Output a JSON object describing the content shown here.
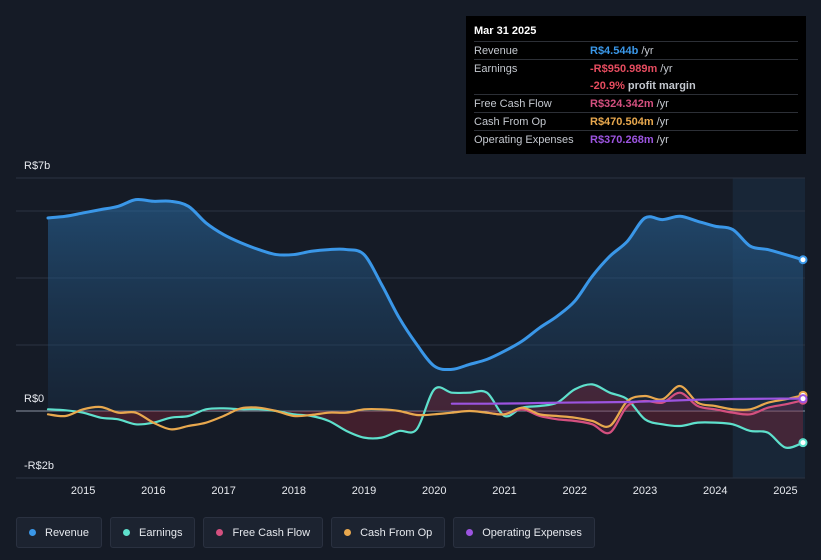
{
  "tooltip": {
    "date": "Mar 31 2025",
    "rows": [
      {
        "label": "Revenue",
        "value": "R$4.544b",
        "unit": "/yr",
        "color": "#3a97e8"
      },
      {
        "label": "Earnings",
        "value": "-R$950.989m",
        "unit": "/yr",
        "color": "#e64c5f"
      },
      {
        "label": "",
        "value": "-20.9%",
        "unit": "profit margin",
        "color": "#e64c5f"
      },
      {
        "label": "Free Cash Flow",
        "value": "R$324.342m",
        "unit": "/yr",
        "color": "#d4507f"
      },
      {
        "label": "Cash From Op",
        "value": "R$470.504m",
        "unit": "/yr",
        "color": "#e8a84e"
      },
      {
        "label": "Operating Expenses",
        "value": "R$370.268m",
        "unit": "/yr",
        "color": "#9c54e0"
      }
    ]
  },
  "legend": [
    {
      "label": "Revenue",
      "color": "#3a97e8"
    },
    {
      "label": "Earnings",
      "color": "#5ee0cc"
    },
    {
      "label": "Free Cash Flow",
      "color": "#d4507f"
    },
    {
      "label": "Cash From Op",
      "color": "#e8a84e"
    },
    {
      "label": "Operating Expenses",
      "color": "#9c54e0"
    }
  ],
  "chart_data": {
    "type": "line",
    "title": "",
    "xlabel": "",
    "ylabel": "",
    "y_unit": "R$ billions",
    "ylim": [
      -2,
      7
    ],
    "y_tick_labels": [
      {
        "value": 7,
        "label": "R$7b"
      },
      {
        "value": 0,
        "label": "R$0"
      },
      {
        "value": -2,
        "label": "-R$2b"
      }
    ],
    "x_ticks": [
      2015,
      2016,
      2017,
      2018,
      2019,
      2020,
      2021,
      2022,
      2023,
      2024,
      2025
    ],
    "xlim": [
      2014.5,
      2025.25
    ],
    "highlight_from": 2024.25,
    "series": [
      {
        "name": "Revenue",
        "color": "#3a97e8",
        "filled": true,
        "points": [
          [
            2014.5,
            5.8
          ],
          [
            2014.75,
            5.85
          ],
          [
            2015.0,
            5.95
          ],
          [
            2015.25,
            6.05
          ],
          [
            2015.5,
            6.15
          ],
          [
            2015.75,
            6.35
          ],
          [
            2016.0,
            6.3
          ],
          [
            2016.25,
            6.3
          ],
          [
            2016.5,
            6.15
          ],
          [
            2016.75,
            5.65
          ],
          [
            2017.0,
            5.3
          ],
          [
            2017.25,
            5.05
          ],
          [
            2017.5,
            4.85
          ],
          [
            2017.75,
            4.7
          ],
          [
            2018.0,
            4.7
          ],
          [
            2018.25,
            4.8
          ],
          [
            2018.5,
            4.85
          ],
          [
            2018.75,
            4.85
          ],
          [
            2019.0,
            4.7
          ],
          [
            2019.25,
            3.8
          ],
          [
            2019.5,
            2.8
          ],
          [
            2019.75,
            2.0
          ],
          [
            2020.0,
            1.35
          ],
          [
            2020.25,
            1.25
          ],
          [
            2020.5,
            1.4
          ],
          [
            2020.75,
            1.55
          ],
          [
            2021.0,
            1.8
          ],
          [
            2021.25,
            2.1
          ],
          [
            2021.5,
            2.5
          ],
          [
            2021.75,
            2.85
          ],
          [
            2022.0,
            3.3
          ],
          [
            2022.25,
            4.05
          ],
          [
            2022.5,
            4.65
          ],
          [
            2022.75,
            5.1
          ],
          [
            2023.0,
            5.8
          ],
          [
            2023.25,
            5.75
          ],
          [
            2023.5,
            5.85
          ],
          [
            2023.75,
            5.7
          ],
          [
            2024.0,
            5.55
          ],
          [
            2024.25,
            5.45
          ],
          [
            2024.5,
            4.95
          ],
          [
            2024.75,
            4.85
          ],
          [
            2025.0,
            4.7
          ],
          [
            2025.25,
            4.544
          ]
        ]
      },
      {
        "name": "Earnings",
        "color": "#5ee0cc",
        "filled": true,
        "points": [
          [
            2014.5,
            0.05
          ],
          [
            2014.75,
            0.02
          ],
          [
            2015.0,
            -0.05
          ],
          [
            2015.25,
            -0.2
          ],
          [
            2015.5,
            -0.25
          ],
          [
            2015.75,
            -0.4
          ],
          [
            2016.0,
            -0.35
          ],
          [
            2016.25,
            -0.2
          ],
          [
            2016.5,
            -0.15
          ],
          [
            2016.75,
            0.05
          ],
          [
            2017.0,
            0.08
          ],
          [
            2017.25,
            0.05
          ],
          [
            2017.5,
            0.05
          ],
          [
            2017.75,
            0.0
          ],
          [
            2018.0,
            -0.1
          ],
          [
            2018.25,
            -0.15
          ],
          [
            2018.5,
            -0.3
          ],
          [
            2018.75,
            -0.6
          ],
          [
            2019.0,
            -0.8
          ],
          [
            2019.25,
            -0.8
          ],
          [
            2019.5,
            -0.6
          ],
          [
            2019.75,
            -0.55
          ],
          [
            2020.0,
            0.65
          ],
          [
            2020.25,
            0.55
          ],
          [
            2020.5,
            0.55
          ],
          [
            2020.75,
            0.55
          ],
          [
            2021.0,
            -0.15
          ],
          [
            2021.25,
            0.1
          ],
          [
            2021.5,
            0.15
          ],
          [
            2021.75,
            0.25
          ],
          [
            2022.0,
            0.65
          ],
          [
            2022.25,
            0.8
          ],
          [
            2022.5,
            0.55
          ],
          [
            2022.75,
            0.35
          ],
          [
            2023.0,
            -0.25
          ],
          [
            2023.25,
            -0.4
          ],
          [
            2023.5,
            -0.45
          ],
          [
            2023.75,
            -0.35
          ],
          [
            2024.0,
            -0.35
          ],
          [
            2024.25,
            -0.4
          ],
          [
            2024.5,
            -0.6
          ],
          [
            2024.75,
            -0.65
          ],
          [
            2025.0,
            -1.1
          ],
          [
            2025.25,
            -0.951
          ]
        ]
      },
      {
        "name": "Free Cash Flow",
        "color": "#d4507f",
        "filled": true,
        "points": [
          [
            2020.75,
            -0.05
          ],
          [
            2021.0,
            -0.1
          ],
          [
            2021.25,
            0.05
          ],
          [
            2021.5,
            -0.15
          ],
          [
            2021.75,
            -0.25
          ],
          [
            2022.0,
            -0.3
          ],
          [
            2022.25,
            -0.4
          ],
          [
            2022.5,
            -0.65
          ],
          [
            2022.75,
            0.15
          ],
          [
            2023.0,
            0.3
          ],
          [
            2023.25,
            0.25
          ],
          [
            2023.5,
            0.55
          ],
          [
            2023.75,
            0.15
          ],
          [
            2024.0,
            0.05
          ],
          [
            2024.25,
            -0.05
          ],
          [
            2024.5,
            -0.1
          ],
          [
            2024.75,
            0.1
          ],
          [
            2025.0,
            0.2
          ],
          [
            2025.25,
            0.324
          ]
        ]
      },
      {
        "name": "Cash From Op",
        "color": "#e8a84e",
        "filled": false,
        "points": [
          [
            2014.5,
            -0.1
          ],
          [
            2014.75,
            -0.15
          ],
          [
            2015.0,
            0.05
          ],
          [
            2015.25,
            0.12
          ],
          [
            2015.5,
            -0.05
          ],
          [
            2015.75,
            -0.05
          ],
          [
            2016.0,
            -0.35
          ],
          [
            2016.25,
            -0.55
          ],
          [
            2016.5,
            -0.45
          ],
          [
            2016.75,
            -0.35
          ],
          [
            2017.0,
            -0.15
          ],
          [
            2017.25,
            0.08
          ],
          [
            2017.5,
            0.1
          ],
          [
            2017.75,
            0.0
          ],
          [
            2018.0,
            -0.15
          ],
          [
            2018.25,
            -0.12
          ],
          [
            2018.5,
            -0.05
          ],
          [
            2018.75,
            -0.05
          ],
          [
            2019.0,
            0.05
          ],
          [
            2019.25,
            0.05
          ],
          [
            2019.5,
            0.0
          ],
          [
            2019.75,
            -0.12
          ],
          [
            2020.0,
            -0.1
          ],
          [
            2020.25,
            -0.05
          ],
          [
            2020.5,
            0.0
          ],
          [
            2020.75,
            -0.05
          ],
          [
            2021.0,
            -0.1
          ],
          [
            2021.25,
            0.1
          ],
          [
            2021.5,
            -0.1
          ],
          [
            2021.75,
            -0.15
          ],
          [
            2022.0,
            -0.2
          ],
          [
            2022.25,
            -0.3
          ],
          [
            2022.5,
            -0.45
          ],
          [
            2022.75,
            0.3
          ],
          [
            2023.0,
            0.45
          ],
          [
            2023.25,
            0.35
          ],
          [
            2023.5,
            0.75
          ],
          [
            2023.75,
            0.25
          ],
          [
            2024.0,
            0.15
          ],
          [
            2024.25,
            0.05
          ],
          [
            2024.5,
            0.05
          ],
          [
            2024.75,
            0.25
          ],
          [
            2025.0,
            0.35
          ],
          [
            2025.25,
            0.471
          ]
        ]
      },
      {
        "name": "Operating Expenses",
        "color": "#9c54e0",
        "filled": false,
        "points": [
          [
            2020.25,
            0.22
          ],
          [
            2020.75,
            0.22
          ],
          [
            2021.25,
            0.23
          ],
          [
            2021.75,
            0.25
          ],
          [
            2022.25,
            0.26
          ],
          [
            2022.75,
            0.27
          ],
          [
            2023.25,
            0.3
          ],
          [
            2023.75,
            0.34
          ],
          [
            2024.25,
            0.36
          ],
          [
            2024.75,
            0.37
          ],
          [
            2025.25,
            0.37
          ]
        ]
      }
    ]
  }
}
